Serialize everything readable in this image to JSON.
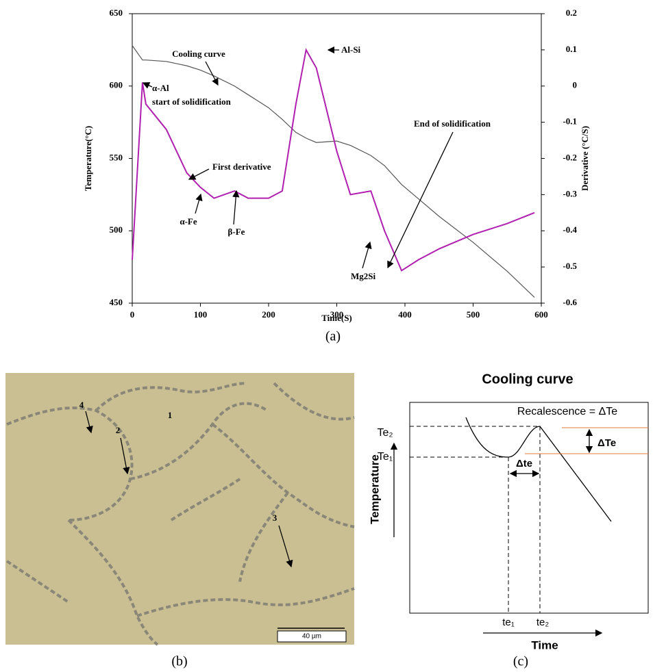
{
  "chart_data": {
    "type": "line",
    "x": [
      0,
      15,
      20,
      50,
      80,
      100,
      120,
      150,
      170,
      200,
      220,
      240,
      255,
      270,
      300,
      320,
      350,
      370,
      395,
      420,
      450,
      500,
      550,
      590
    ],
    "series": [
      {
        "name": "Cooling curve",
        "color": "#555555",
        "values": [
          628,
          618,
          618,
          617,
          614,
          611,
          607,
          600,
          594,
          585,
          577,
          568,
          564,
          561,
          562,
          559,
          552,
          545,
          532,
          522,
          510,
          492,
          472,
          454
        ]
      },
      {
        "name": "First derivative",
        "color": "#b01fb0",
        "axis": "y2",
        "values": [
          -0.48,
          0.01,
          -0.05,
          -0.12,
          -0.24,
          -0.28,
          -0.31,
          -0.29,
          -0.31,
          -0.31,
          -0.29,
          -0.05,
          0.1,
          0.05,
          -0.18,
          -0.3,
          -0.29,
          -0.4,
          -0.51,
          -0.48,
          -0.45,
          -0.41,
          -0.38,
          -0.35
        ]
      }
    ],
    "xlabel": "Time(S)",
    "ylabel": "Temperature(°C)",
    "y2label": "Derivative (°C/S)",
    "xlim": [
      0,
      600
    ],
    "xticks": [
      0,
      100,
      200,
      300,
      400,
      500,
      600
    ],
    "ylim": [
      450,
      650
    ],
    "yticks": [
      450,
      500,
      550,
      600,
      650
    ],
    "y2lim": [
      -0.6,
      0.2
    ],
    "y2ticks": [
      -0.6,
      -0.5,
      -0.4,
      -0.3,
      -0.2,
      -0.1,
      0,
      0.1,
      0.2
    ],
    "annotations": [
      "Cooling curve",
      "α-Al",
      "start of solidification",
      "First derivative",
      "α-Fe",
      "β-Fe",
      "Al-Si",
      "Mg2Si",
      "End of solidification"
    ]
  },
  "panel_labels": [
    "(a)",
    "(b)",
    "(c)"
  ],
  "micrograph": {
    "markers": [
      "1",
      "2",
      "3",
      "4"
    ],
    "scale_bar": "40 µm"
  },
  "schematic": {
    "title": "Cooling curve",
    "recalescence": "Recalescence = ΔTe",
    "y_axis": "Temperature",
    "x_axis": "Time",
    "levels": [
      "Te₂",
      "Te₁"
    ],
    "times": [
      "te₁",
      "te₂"
    ],
    "delta_temperature": "ΔTe",
    "delta_time": "Δte"
  }
}
